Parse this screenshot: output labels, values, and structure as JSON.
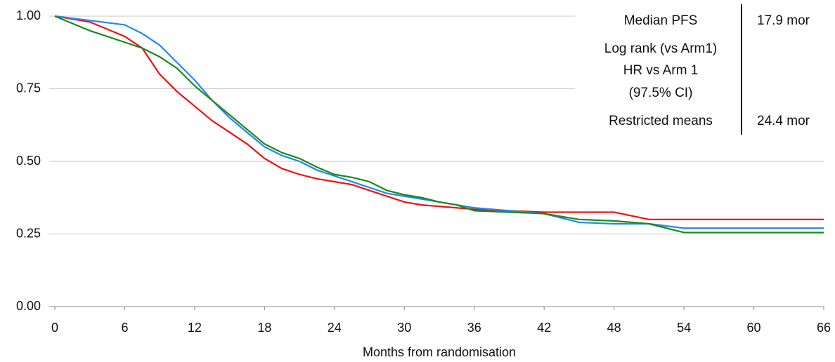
{
  "chart_data": {
    "type": "line",
    "x_label": "Months from randomisation",
    "x": [
      0,
      3,
      6,
      7.5,
      9,
      10.5,
      12,
      13.5,
      15,
      16.5,
      18,
      19.5,
      21,
      22.5,
      24,
      25.5,
      27,
      28.5,
      30,
      31.5,
      33,
      34.5,
      36,
      39,
      42,
      45,
      48,
      51,
      54,
      57,
      60,
      63,
      66
    ],
    "series": [
      {
        "color": "#ee1111",
        "values": [
          1,
          0.98,
          0.93,
          0.89,
          0.8,
          0.74,
          0.69,
          0.64,
          0.6,
          0.56,
          0.51,
          0.475,
          0.455,
          0.44,
          0.43,
          0.42,
          0.4,
          0.38,
          0.36,
          0.35,
          0.345,
          0.34,
          0.335,
          0.33,
          0.325,
          0.325,
          0.325,
          0.3,
          0.3,
          0.3,
          0.3,
          0.3,
          0.3
        ]
      },
      {
        "color": "#2288ee",
        "values": [
          1,
          0.985,
          0.97,
          0.94,
          0.9,
          0.84,
          0.78,
          0.71,
          0.65,
          0.6,
          0.55,
          0.52,
          0.5,
          0.47,
          0.45,
          0.43,
          0.41,
          0.39,
          0.38,
          0.37,
          0.36,
          0.35,
          0.34,
          0.33,
          0.32,
          0.29,
          0.285,
          0.285,
          0.27,
          0.27,
          0.27,
          0.27,
          0.27
        ]
      },
      {
        "color": "#1a8a1a",
        "values": [
          1,
          0.95,
          0.91,
          0.89,
          0.86,
          0.82,
          0.76,
          0.71,
          0.66,
          0.61,
          0.56,
          0.53,
          0.51,
          0.48,
          0.455,
          0.445,
          0.43,
          0.4,
          0.385,
          0.375,
          0.36,
          0.35,
          0.33,
          0.325,
          0.32,
          0.3,
          0.295,
          0.285,
          0.255,
          0.255,
          0.255,
          0.255,
          0.255
        ]
      }
    ],
    "xlim": [
      0,
      66
    ],
    "xticks": [
      0,
      6,
      12,
      18,
      24,
      30,
      36,
      42,
      48,
      54,
      60,
      66
    ],
    "ylim": [
      0,
      1
    ],
    "yticks": [
      {
        "value": 0,
        "label": "0.00"
      },
      {
        "value": 0.25,
        "label": "0.25"
      },
      {
        "value": 0.5,
        "label": "0.50"
      },
      {
        "value": 0.75,
        "label": "0.75"
      },
      {
        "value": 1,
        "label": "1.00"
      }
    ],
    "grid": true,
    "table": {
      "left": [
        "Median PFS",
        "Log rank (vs Arm1)",
        "HR vs Arm 1",
        "(97.5% CI)",
        "Restricted means"
      ],
      "right": [
        "17.9 mor",
        "24.4 mor"
      ]
    }
  }
}
